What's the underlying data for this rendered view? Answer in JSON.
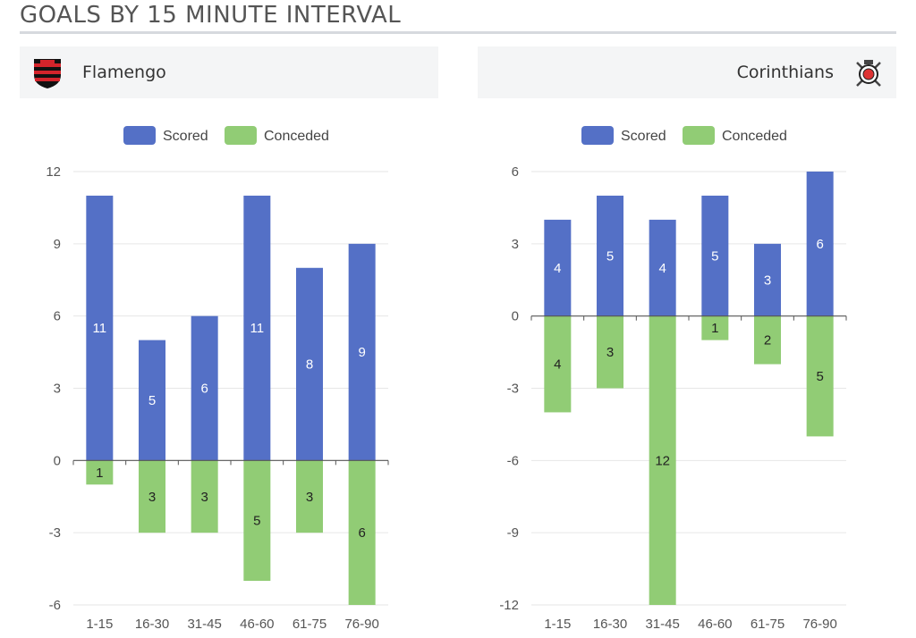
{
  "header": {
    "title": "GOALS BY 15 MINUTE INTERVAL"
  },
  "teams": [
    {
      "name": "Flamengo",
      "crest_icon": "flamengo-crest-icon"
    },
    {
      "name": "Corinthians",
      "crest_icon": "corinthians-crest-icon"
    }
  ],
  "colors": {
    "scored": "#5470c6",
    "conceded": "#91cc75"
  },
  "chart_data": [
    {
      "type": "bar",
      "categories": [
        "1-15",
        "16-30",
        "31-45",
        "46-60",
        "61-75",
        "76-90"
      ],
      "series": [
        {
          "name": "Scored",
          "values": [
            11,
            5,
            6,
            11,
            8,
            9
          ]
        },
        {
          "name": "Conceded",
          "values": [
            -1,
            -3,
            -3,
            -5,
            -3,
            -6
          ]
        }
      ],
      "data_labels": {
        "Scored": [
          "11",
          "5",
          "6",
          "11",
          "8",
          "9"
        ],
        "Conceded": [
          "1",
          "3",
          "3",
          "5",
          "3",
          "6"
        ]
      },
      "yticks": [
        "12",
        "9",
        "6",
        "3",
        "0",
        "-3",
        "-6"
      ],
      "ylim": [
        -6,
        12
      ],
      "grid": true,
      "legend": "top-center"
    },
    {
      "type": "bar",
      "categories": [
        "1-15",
        "16-30",
        "31-45",
        "46-60",
        "61-75",
        "76-90"
      ],
      "series": [
        {
          "name": "Scored",
          "values": [
            4,
            5,
            4,
            5,
            3,
            6
          ]
        },
        {
          "name": "Conceded",
          "values": [
            -4,
            -3,
            -12,
            -1,
            -2,
            -5
          ]
        }
      ],
      "data_labels": {
        "Scored": [
          "4",
          "5",
          "4",
          "5",
          "3",
          "6"
        ],
        "Conceded": [
          "4",
          "3",
          "12",
          "1",
          "2",
          "5"
        ]
      },
      "yticks": [
        "6",
        "3",
        "0",
        "-3",
        "-6",
        "-9",
        "-12"
      ],
      "ylim": [
        -12,
        6
      ],
      "grid": true,
      "legend": "top-center"
    }
  ]
}
